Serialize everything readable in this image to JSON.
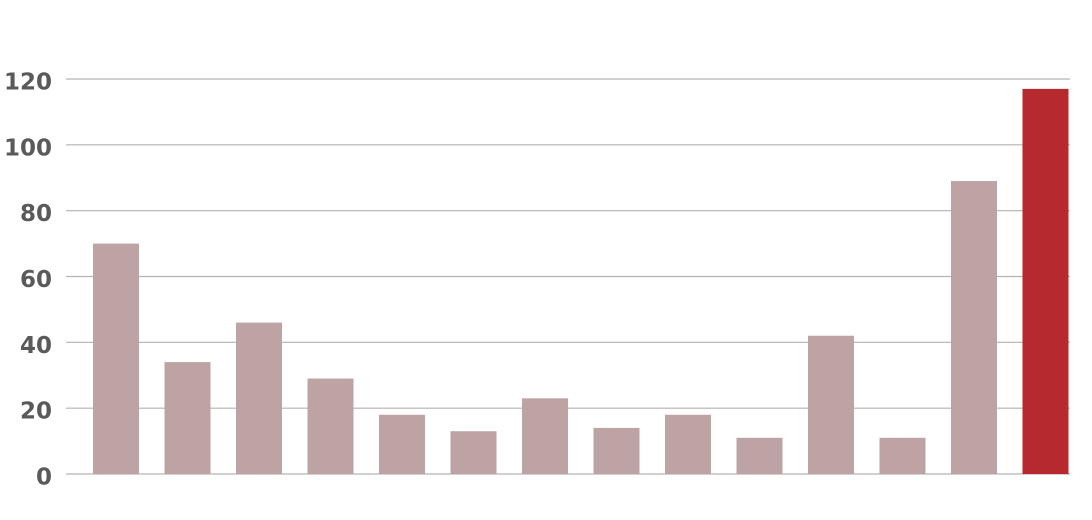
{
  "chart_data": {
    "type": "bar",
    "categories": [
      null,
      null,
      null,
      null,
      null,
      null,
      null,
      null,
      null,
      null,
      null,
      null,
      null,
      null
    ],
    "values": [
      70,
      34,
      46,
      29,
      18,
      13,
      23,
      14,
      18,
      11,
      42,
      11,
      89,
      117
    ],
    "colors": [
      "#bea3a5",
      "#bea3a5",
      "#bea3a5",
      "#bea3a5",
      "#bea3a5",
      "#bea3a5",
      "#bea3a5",
      "#bea3a5",
      "#bea3a5",
      "#bea3a5",
      "#bea3a5",
      "#bea3a5",
      "#bea3a5",
      "#b5292f"
    ],
    "ylim": [
      0,
      120
    ],
    "yticks": [
      0,
      20,
      40,
      60,
      80,
      100,
      120
    ],
    "grid": true
  }
}
